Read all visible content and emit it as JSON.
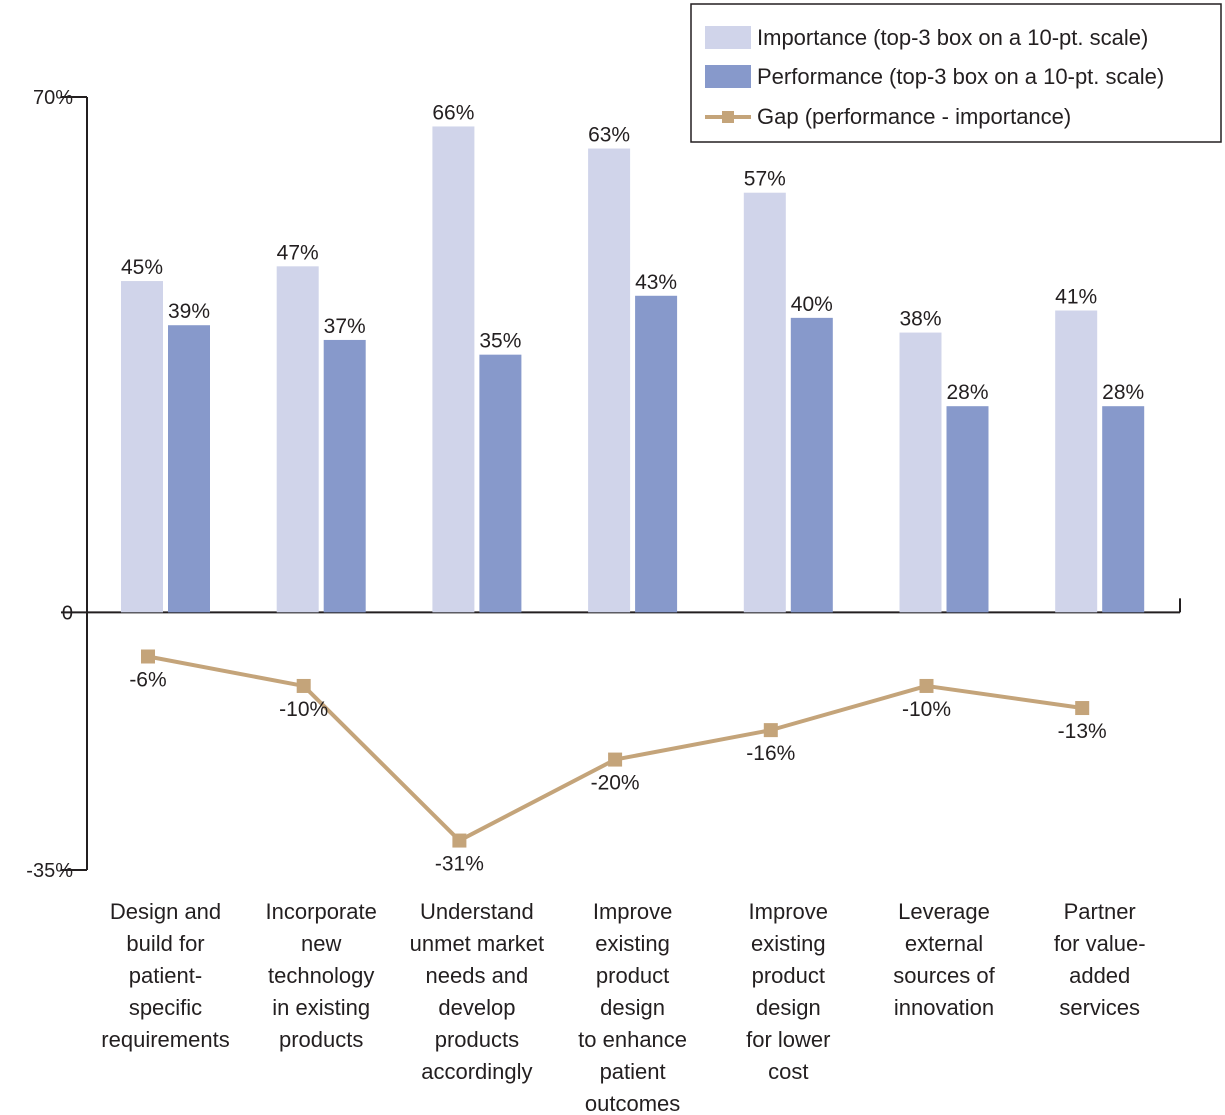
{
  "chart_data": {
    "type": "bar",
    "categories": [
      [
        "Design and",
        "build for",
        "patient-",
        "specific",
        "requirements"
      ],
      [
        "Incorporate",
        "new",
        "technology",
        "in existing",
        "products"
      ],
      [
        "Understand",
        "unmet market",
        "needs and",
        "develop",
        "products",
        "accordingly"
      ],
      [
        "Improve",
        "existing",
        "product",
        "design",
        "to enhance",
        "patient",
        "outcomes"
      ],
      [
        "Improve",
        "existing",
        "product",
        "design",
        "for lower",
        "cost"
      ],
      [
        "Leverage",
        "external",
        "sources of",
        "innovation"
      ],
      [
        "Partner",
        "for value-",
        "added",
        "services"
      ]
    ],
    "series": [
      {
        "name": "Importance (top-3 box on a 10-pt. scale)",
        "type": "bar",
        "color": "#d0d4ea",
        "values": [
          45,
          47,
          66,
          63,
          57,
          38,
          41
        ],
        "labels": [
          "45%",
          "47%",
          "66%",
          "63%",
          "57%",
          "38%",
          "41%"
        ]
      },
      {
        "name": "Performance (top-3 box on a 10-pt. scale)",
        "type": "bar",
        "color": "#8799cb",
        "values": [
          39,
          37,
          35,
          43,
          40,
          28,
          28
        ],
        "labels": [
          "39%",
          "37%",
          "35%",
          "43%",
          "40%",
          "28%",
          "28%"
        ]
      },
      {
        "name": "Gap (performance - importance)",
        "type": "line",
        "color": "#c4a47a",
        "values": [
          -6,
          -10,
          -31,
          -20,
          -16,
          -10,
          -13
        ],
        "labels": [
          "-6%",
          "-10%",
          "-31%",
          "-20%",
          "-16%",
          "-10%",
          "-13%"
        ]
      }
    ],
    "ylim": [
      -35,
      70
    ],
    "yticks": [
      {
        "value": 70,
        "label": "70%"
      },
      {
        "value": 0,
        "label": "0"
      },
      {
        "value": -35,
        "label": "-35%"
      }
    ],
    "legend_position": "top-right",
    "grid": false
  }
}
